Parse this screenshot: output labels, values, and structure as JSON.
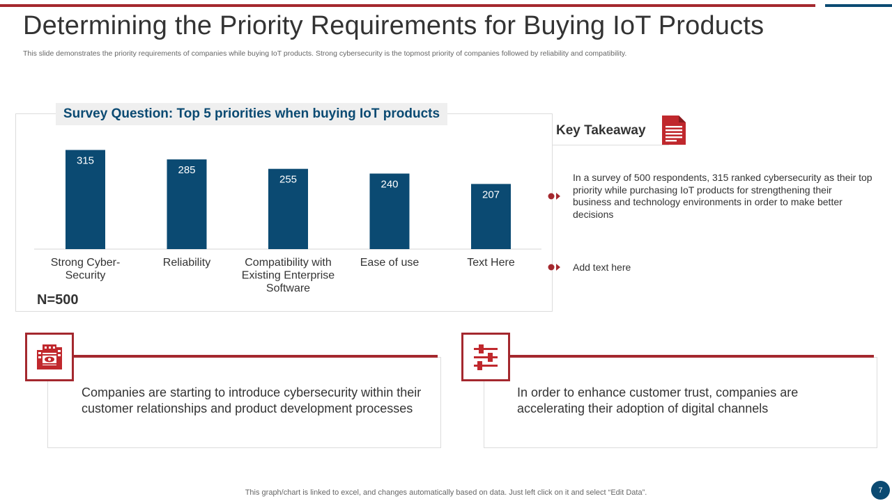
{
  "header": {
    "title": "Determining the Priority Requirements for Buying IoT Products",
    "subtitle": "This slide demonstrates the priority requirements of companies while buying IoT products. Strong cybersecurity is the topmost priority of companies followed by reliability and compatibility."
  },
  "chart_data": {
    "type": "bar",
    "title": "Survey Question: Top 5 priorities when buying IoT products",
    "categories": [
      [
        "Strong Cyber-",
        "Security"
      ],
      [
        "Reliability"
      ],
      [
        "Compatibility with",
        "Existing Enterprise",
        "Software"
      ],
      [
        "Ease of use"
      ],
      [
        "Text Here"
      ]
    ],
    "values": [
      315,
      285,
      255,
      240,
      207
    ],
    "data_labels": true,
    "ylim": [
      0,
      325
    ],
    "grid": false,
    "bar_color": "#0b4a72",
    "note": "N=500"
  },
  "key_takeaway": {
    "title": "Key Takeaway",
    "icon": "document-icon",
    "points": [
      "In a survey of 500 respondents, 315 ranked cybersecurity as their top priority while purchasing IoT products for strengthening their business and technology environments in order to make better decisions",
      "Add text here"
    ]
  },
  "cards": [
    {
      "icon": "cybersecurity-building-icon",
      "text": "Companies are starting to introduce cybersecurity within their customer relationships and product development processes"
    },
    {
      "icon": "sliders-icon",
      "text": "In order to enhance customer trust, companies are accelerating their adoption of digital channels"
    }
  ],
  "footer": {
    "note": "This graph/chart is linked to excel,  and changes automatically based on data. Just left click on it and select “Edit Data”.",
    "page_number": "7"
  },
  "colors": {
    "accent_red": "#a4282e",
    "accent_blue": "#0b4a72"
  }
}
